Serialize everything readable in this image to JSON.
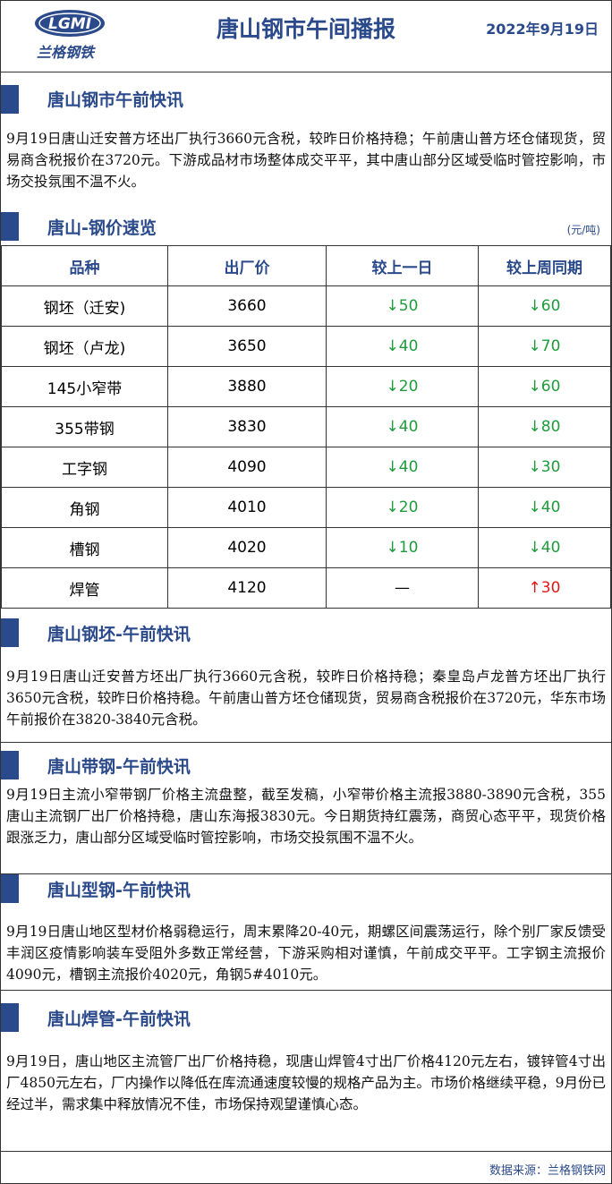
{
  "header": {
    "logo_text": "LGMI",
    "logo_name": "兰格钢铁",
    "title": "唐山钢市午间播报",
    "date": "2022年9月19日"
  },
  "intro": {
    "title": "唐山钢市午前快讯",
    "text": "9月19日唐山迁安普方坯出厂执行3660元含税，较昨日价格持稳；午前唐山普方坯仓储现货，贸易商含税报价在3720元。下游成品材市场整体成交平平，其中唐山部分区域受临时管控影响，市场交投氛围不温不火。"
  },
  "table": {
    "title": "唐山-钢价速览",
    "unit": "(元/吨)",
    "header": [
      "品种",
      "出厂价",
      "较上一日",
      "较上周同期"
    ],
    "rows": [
      [
        "钢坯（迁安)",
        "3660",
        "↓50",
        "↓60"
      ],
      [
        "钢坯（卢龙)",
        "3650",
        "↓40",
        "↓70"
      ],
      [
        "145小窄带",
        "3880",
        "↓20",
        "↓60"
      ],
      [
        "355带钢",
        "3830",
        "↓40",
        "↓80"
      ],
      [
        "工字钢",
        "4090",
        "↓40",
        "↓30"
      ],
      [
        "角钢",
        "4010",
        "↓20",
        "↓40"
      ],
      [
        "槽钢",
        "4020",
        "↓10",
        "↓40"
      ],
      [
        "焊管",
        "4120",
        "—",
        "↑30"
      ]
    ]
  },
  "sections": [
    {
      "title": "唐山钢坯-午前快讯",
      "text": "9月19日唐山迁安普方坯出厂执行3660元含税，较昨日价格持稳；秦皇岛卢龙普方坯出厂执行3650元含税，较昨日价格持稳。午前唐山普方坯仓储现货，贸易商含税报价在3720元，华东市场午前报价在3820-3840元含税。"
    },
    {
      "title": "唐山带钢-午前快讯",
      "text": "9月19日主流小窄带钢厂价格主流盘整，截至发稿，小窄带价格主流报3880-3890元含税，355唐山主流钢厂出厂价格持稳，唐山东海报3830元。今日期货持红震荡，商贸心态平平，现货价格跟涨乏力，唐山部分区域受临时管控影响，市场交投氛围不温不火。"
    },
    {
      "title": "唐山型钢-午前快讯",
      "text": "9月19日唐山地区型材价格弱稳运行，周末累降20-40元，期螺区间震荡运行，除个别厂家反馈受丰润区疫情影响装车受阻外多数正常经营，下游采购相对谨慎，午前成交平平。工字钢主流报价4090元，槽钢主流报价4020元，角钢5#4010元。"
    },
    {
      "title": "唐山焊管-午前快讯",
      "text": "9月19日，唐山地区主流管厂出厂价格持稳，现唐山焊管4寸出厂价格4120元左右，镀锌管4寸出厂4850元左右，厂内操作以降低在库流通速度较慢的规格产品为主。市场价格继续平稳，9月份已经过半，需求集中释放情况不佳，市场保持观望谨慎心态。"
    }
  ],
  "footer": "数据来源：兰格钢铁网"
}
